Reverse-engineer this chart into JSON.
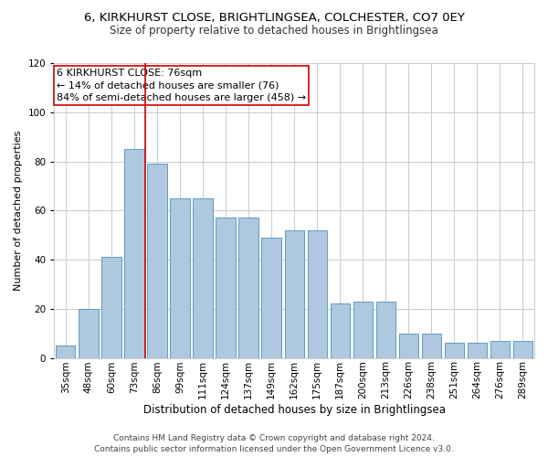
{
  "title1": "6, KIRKHURST CLOSE, BRIGHTLINGSEA, COLCHESTER, CO7 0EY",
  "title2": "Size of property relative to detached houses in Brightlingsea",
  "xlabel": "Distribution of detached houses by size in Brightlingsea",
  "ylabel": "Number of detached properties",
  "footer1": "Contains HM Land Registry data © Crown copyright and database right 2024.",
  "footer2": "Contains public sector information licensed under the Open Government Licence v3.0.",
  "annotation_line1": "6 KIRKHURST CLOSE: 76sqm",
  "annotation_line2": "← 14% of detached houses are smaller (76)",
  "annotation_line3": "84% of semi-detached houses are larger (458) →",
  "categories": [
    "35sqm",
    "48sqm",
    "60sqm",
    "73sqm",
    "86sqm",
    "99sqm",
    "111sqm",
    "124sqm",
    "137sqm",
    "149sqm",
    "162sqm",
    "175sqm",
    "187sqm",
    "200sqm",
    "213sqm",
    "226sqm",
    "238sqm",
    "251sqm",
    "264sqm",
    "276sqm",
    "289sqm"
  ],
  "values": [
    5,
    20,
    41,
    85,
    79,
    65,
    65,
    57,
    57,
    49,
    52,
    52,
    22,
    23,
    23,
    10,
    10,
    6,
    6,
    7,
    7
  ],
  "bar_color": "#aec8e0",
  "bar_edge_color": "#5090b8",
  "vline_color": "#cc0000",
  "vline_x": 3.5,
  "ylim": [
    0,
    120
  ],
  "yticks": [
    0,
    20,
    40,
    60,
    80,
    100,
    120
  ],
  "annotation_box_edge": "#cc0000",
  "grid_color": "#cccccc",
  "background_color": "#ffffff",
  "title1_fontsize": 9.5,
  "title2_fontsize": 8.5,
  "xlabel_fontsize": 8.5,
  "ylabel_fontsize": 8,
  "tick_fontsize": 7.5,
  "annotation_fontsize": 8,
  "footer_fontsize": 6.5
}
